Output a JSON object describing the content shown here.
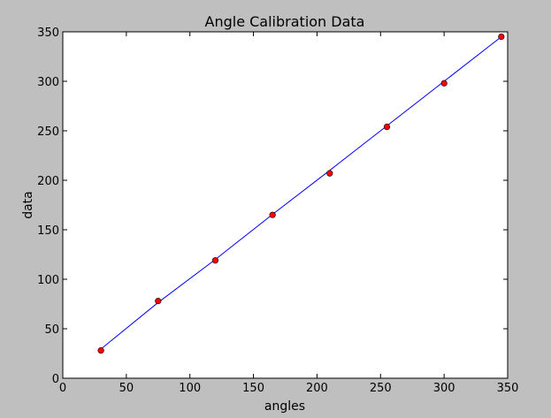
{
  "chart_data": {
    "type": "scatter",
    "title": "Angle Calibration Data",
    "xlabel": "angles",
    "ylabel": "data",
    "xlim": [
      0,
      350
    ],
    "ylim": [
      0,
      350
    ],
    "xticks": [
      0,
      50,
      100,
      150,
      200,
      250,
      300,
      350
    ],
    "yticks": [
      0,
      50,
      100,
      150,
      200,
      250,
      300,
      350
    ],
    "grid": false,
    "series": [
      {
        "kind": "points",
        "color": "#ff0000",
        "x": [
          30,
          75,
          120,
          165,
          210,
          255,
          300,
          345
        ],
        "y": [
          28,
          78,
          119,
          165,
          207,
          254,
          298,
          345
        ]
      },
      {
        "kind": "line",
        "color": "#0000ff",
        "x": [
          30,
          75,
          120,
          165,
          210,
          255,
          300,
          345
        ],
        "y": [
          29.5,
          76.5,
          120,
          165.5,
          210,
          255,
          300,
          345
        ]
      }
    ]
  }
}
